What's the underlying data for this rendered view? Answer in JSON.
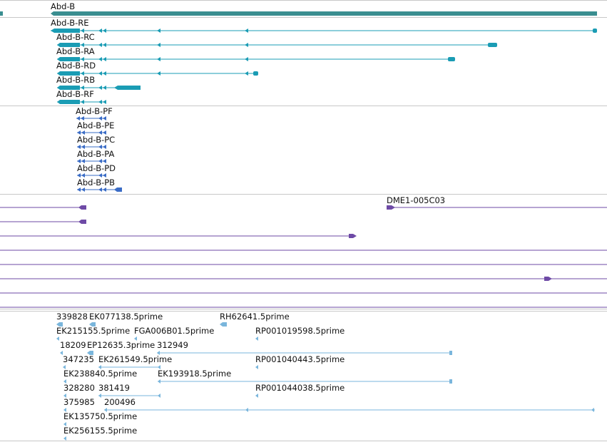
{
  "colors": {
    "gene": "#3a8e90",
    "transcript": "#1a9cb4",
    "protein": "#3a6cc6",
    "clone": "#6e4aa6",
    "est": "#7ab6dc",
    "divider": "#c8c8c8"
  },
  "gene": {
    "label": "Abd-B"
  },
  "transcripts": [
    {
      "label": "Abd-B-RE"
    },
    {
      "label": "Abd-B-RC"
    },
    {
      "label": "Abd-B-RA"
    },
    {
      "label": "Abd-B-RD"
    },
    {
      "label": "Abd-B-RB"
    },
    {
      "label": "Abd-B-RF"
    }
  ],
  "proteins": [
    {
      "label": "Abd-B-PF"
    },
    {
      "label": "Abd-B-PE"
    },
    {
      "label": "Abd-B-PC"
    },
    {
      "label": "Abd-B-PA"
    },
    {
      "label": "Abd-B-PD"
    },
    {
      "label": "Abd-B-PB"
    }
  ],
  "clones": {
    "label": "DME1-005C03"
  },
  "ests": [
    {
      "label": "339828"
    },
    {
      "label": "EK077138.5prime"
    },
    {
      "label": "RH62641.5prime"
    },
    {
      "label": "EK215155.5prime"
    },
    {
      "label": "FGA006B01.5prime"
    },
    {
      "label": "RP001019598.5prime"
    },
    {
      "label": "18209"
    },
    {
      "label": "EP12635.3prime"
    },
    {
      "label": "312949"
    },
    {
      "label": "347235"
    },
    {
      "label": "EK261549.5prime"
    },
    {
      "label": "RP001040443.5prime"
    },
    {
      "label": "EK238840.5prime"
    },
    {
      "label": "EK193918.5prime"
    },
    {
      "label": "328280"
    },
    {
      "label": "381419"
    },
    {
      "label": "RP001044038.5prime"
    },
    {
      "label": "375985"
    },
    {
      "label": "200496"
    },
    {
      "label": "EK135750.5prime"
    },
    {
      "label": "EK256155.5prime"
    }
  ]
}
